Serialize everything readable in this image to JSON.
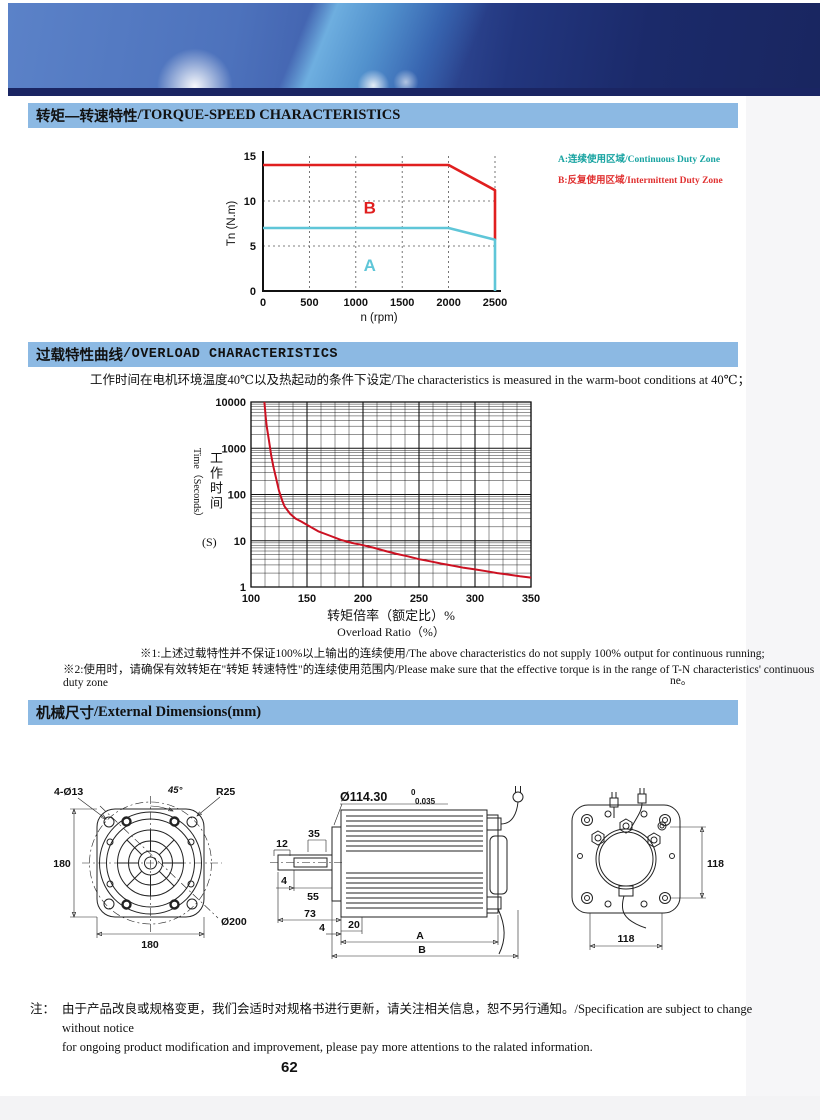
{
  "sections": {
    "torque": {
      "title_cn": "转矩—转速特性",
      "title_en": "/TORQUE-SPEED CHARACTERISTICS"
    },
    "overload": {
      "title_cn": "过载特性曲线",
      "title_en": "/OVERLOAD CHARACTERISTICS",
      "subtitle": "工作时间在电机环境温度40℃以及热起动的条件下设定/The characteristics is measured in the warm-boot conditions at 40℃；"
    },
    "dimensions": {
      "title_cn": "机械尺寸",
      "title_en": "/External Dimensions(mm)"
    }
  },
  "chart_data": [
    {
      "type": "line",
      "title": "Torque-Speed Characteristics",
      "xlabel": "n (rpm)",
      "ylabel": "Tn (N.m)",
      "xlim": [
        0,
        2500
      ],
      "ylim": [
        0,
        15
      ],
      "xticks": [
        0,
        500,
        1000,
        1500,
        2000,
        2500
      ],
      "yticks": [
        0,
        5,
        10,
        15
      ],
      "grid": "dashed",
      "series": [
        {
          "name": "B intermittent duty limit",
          "color": "#e01f1f",
          "points": [
            [
              0,
              14
            ],
            [
              2000,
              14
            ],
            [
              2500,
              11.2
            ],
            [
              2500,
              5.7
            ]
          ]
        },
        {
          "name": "A continuous duty limit",
          "color": "#5fc6d8",
          "points": [
            [
              0,
              7
            ],
            [
              2000,
              7
            ],
            [
              2500,
              5.7
            ],
            [
              2500,
              0
            ]
          ]
        }
      ],
      "zone_labels": [
        {
          "text": "B",
          "x": 1150,
          "y": 8.6,
          "color": "#e01f1f"
        },
        {
          "text": "A",
          "x": 1150,
          "y": 2.2,
          "color": "#5fc6d8"
        }
      ],
      "legend": [
        {
          "label": "A:连续使用区域/Continuous Duty Zone",
          "color": "#17a3a1"
        },
        {
          "label": "B:反复使用区域/Intermittent Duty Zone",
          "color": "#e03030"
        }
      ],
      "legend_position": "right"
    },
    {
      "type": "line",
      "title": "Overload Characteristics",
      "xlabel_cn": "转矩倍率（额定比）%",
      "xlabel_en": "Overload Ratio（%）",
      "ylabel_en": "Time（Seconds）",
      "ylabel_cn": "工作时间",
      "ylabel_unit": "(S)",
      "xlim": [
        100,
        350
      ],
      "ylim": [
        1,
        10000
      ],
      "yscale": "log",
      "xticks": [
        100,
        150,
        200,
        250,
        300,
        350
      ],
      "yticks": [
        1,
        10,
        100,
        1000,
        10000
      ],
      "grid": "dense",
      "series": [
        {
          "name": "overload time limit",
          "color": "#cc1122",
          "points": [
            [
              112,
              10000
            ],
            [
              113,
              5000
            ],
            [
              114,
              3000
            ],
            [
              116,
              1500
            ],
            [
              118,
              700
            ],
            [
              120,
              400
            ],
            [
              122,
              250
            ],
            [
              125,
              120
            ],
            [
              128,
              72
            ],
            [
              130,
              55
            ],
            [
              135,
              38
            ],
            [
              140,
              30
            ],
            [
              145,
              26
            ],
            [
              150,
              22
            ],
            [
              160,
              16
            ],
            [
              170,
              13
            ],
            [
              180,
              10.5
            ],
            [
              190,
              9
            ],
            [
              200,
              8
            ],
            [
              210,
              7
            ],
            [
              220,
              6
            ],
            [
              230,
              5.2
            ],
            [
              240,
              4.6
            ],
            [
              250,
              4
            ],
            [
              260,
              3.6
            ],
            [
              270,
              3.2
            ],
            [
              280,
              2.9
            ],
            [
              290,
              2.6
            ],
            [
              300,
              2.4
            ],
            [
              310,
              2.2
            ],
            [
              320,
              2.0
            ],
            [
              330,
              1.85
            ],
            [
              340,
              1.7
            ],
            [
              350,
              1.6
            ]
          ]
        }
      ]
    }
  ],
  "notes": {
    "note1": "※1:上述过载特性并不保证100%以上输出的连续使用/The above characteristics do not supply 100% output for continuous running;",
    "note2": "※2:使用时，请确保有效转矩在\"转矩 转速特性\"的连续使用范围内/Please make sure that the effective torque is in the range of T-N characteristics' continuous duty zone",
    "note2_cont": "ne。",
    "stray_mark": "-"
  },
  "drawings": {
    "front": {
      "holes": "4-Ø13",
      "angle": "45°",
      "radius": "R25",
      "height": "180",
      "width": "180",
      "outer": "Ø200"
    },
    "side": {
      "dia": "Ø114.30",
      "tol_top": "0",
      "tol_bottom": "0.035",
      "d35": "35",
      "d12": "12",
      "d4a": "4",
      "d55": "55",
      "d73": "73",
      "d4b": "4",
      "d20": "20",
      "dA": "A",
      "dB": "B"
    },
    "rear": {
      "height": "118",
      "width": "118"
    }
  },
  "footer": {
    "label": "注：",
    "line1": "由于产品改良或规格变更，我们会适时对规格书进行更新，请关注相关信息，恕不另行通知。/Specification are subject to change without notice",
    "line2": "for ongoing product modification and improvement, please pay more attentions to the ralated information."
  },
  "page_number": "62"
}
